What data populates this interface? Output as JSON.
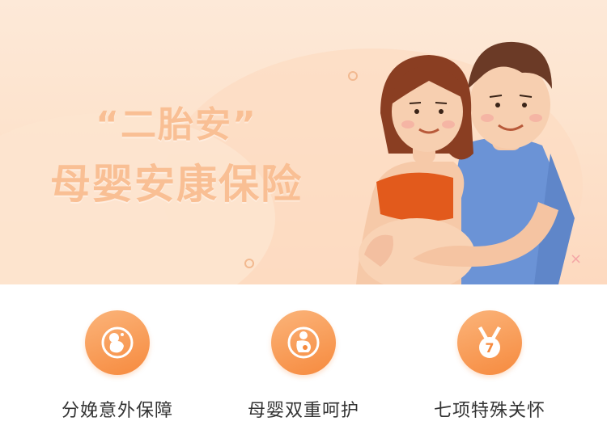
{
  "banner": {
    "title_line1": "“二胎安”",
    "title_line2": "母婴安康保险"
  },
  "features": [
    {
      "label": "分娩意外保障",
      "icon": "fetus-icon"
    },
    {
      "label": "母婴双重呵护",
      "icon": "pregnant-mother-icon"
    },
    {
      "label": "七项特殊关怀",
      "icon": "medal-seven-icon",
      "badge_number": "7"
    }
  ],
  "colors": {
    "accent": "#f68a3e",
    "banner_bg": "#fde3cd",
    "title_color": "#f9bf94",
    "label_color": "#333333"
  }
}
